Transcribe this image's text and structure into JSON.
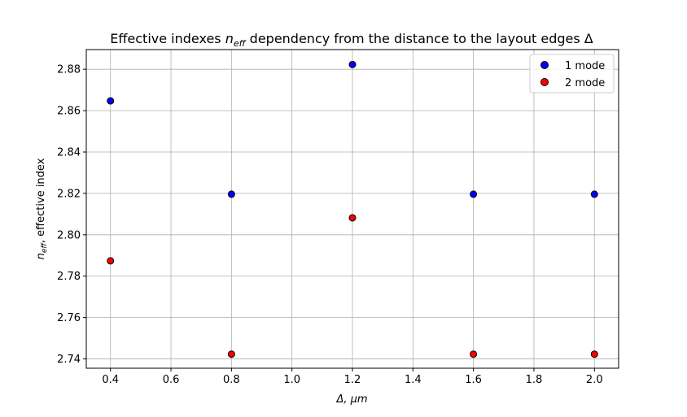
{
  "chart_data": {
    "type": "scatter",
    "title": "Effective indexes n_eff dependency from the distance to the layout edges Δ",
    "title_parts": {
      "before": "Effective indexes ",
      "math_main": "n",
      "math_sub": "eff",
      "after": " dependency from the distance to the layout edges Δ"
    },
    "xlabel": "Δ, μm",
    "ylabel": "n_eff, effective index",
    "ylabel_parts": {
      "math_main": "n",
      "math_sub": "eff",
      "after": ", effective index"
    },
    "xlim": [
      0.32,
      2.08
    ],
    "ylim": [
      2.7355,
      2.8895
    ],
    "xticks": [
      0.4,
      0.6,
      0.8,
      1.0,
      1.2,
      1.4,
      1.6,
      1.8,
      2.0
    ],
    "xtick_labels": [
      "0.4",
      "0.6",
      "0.8",
      "1.0",
      "1.2",
      "1.4",
      "1.6",
      "1.8",
      "2.0"
    ],
    "yticks": [
      2.74,
      2.76,
      2.78,
      2.8,
      2.82,
      2.84,
      2.86,
      2.88
    ],
    "ytick_labels": [
      "2.74",
      "2.76",
      "2.78",
      "2.80",
      "2.82",
      "2.84",
      "2.86",
      "2.88"
    ],
    "grid": true,
    "legend_position": "top-right",
    "series": [
      {
        "name": "1 mode",
        "color": "#0000ff",
        "x": [
          0.4,
          0.8,
          1.2,
          1.6,
          2.0
        ],
        "y": [
          2.8647,
          2.8196,
          2.8823,
          2.8196,
          2.8196
        ]
      },
      {
        "name": "2 mode",
        "color": "#ff0000",
        "x": [
          0.4,
          0.8,
          1.2,
          1.6,
          2.0
        ],
        "y": [
          2.7874,
          2.7423,
          2.8082,
          2.7423,
          2.7423
        ]
      }
    ]
  }
}
